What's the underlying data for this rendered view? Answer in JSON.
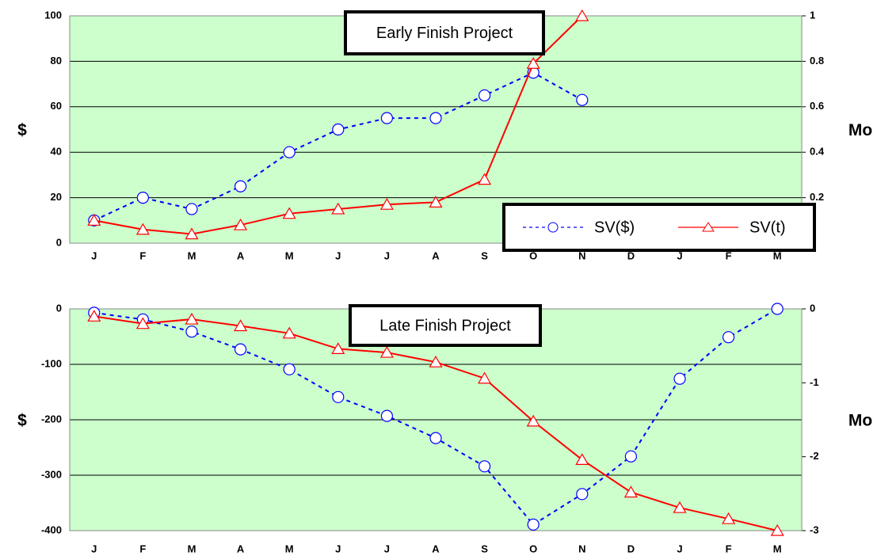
{
  "chart_data": [
    {
      "type": "line",
      "title": "Early Finish Project",
      "categories": [
        "J",
        "F",
        "M",
        "A",
        "M",
        "J",
        "J",
        "A",
        "S",
        "O",
        "N",
        "D",
        "J",
        "F",
        "M"
      ],
      "ylabel": "$",
      "y2label": "Mo",
      "ylim": [
        0,
        100
      ],
      "yticks": [
        0,
        20,
        40,
        60,
        80,
        100
      ],
      "y2lim": [
        0,
        1
      ],
      "y2ticks": [
        0,
        0.2,
        0.4,
        0.6,
        0.8,
        1
      ],
      "grid": true,
      "background": "#ccffcc",
      "legend": "lower right",
      "series": [
        {
          "name": "SV($)",
          "color": "#0000ff",
          "marker": "circle",
          "dash": true,
          "values": [
            10,
            20,
            15,
            25,
            40,
            50,
            55,
            55,
            65,
            75,
            63,
            null,
            null,
            null,
            null
          ]
        },
        {
          "name": "SV(t)",
          "color": "#ff0000",
          "marker": "triangle",
          "axis": "y2",
          "values": [
            0.1,
            0.06,
            0.04,
            0.08,
            0.13,
            0.15,
            0.17,
            0.18,
            0.28,
            0.79,
            1,
            null,
            null,
            null,
            null
          ]
        }
      ]
    },
    {
      "type": "line",
      "title": "Late Finish Project",
      "categories": [
        "J",
        "F",
        "M",
        "A",
        "M",
        "J",
        "J",
        "A",
        "S",
        "O",
        "N",
        "D",
        "J",
        "F",
        "M"
      ],
      "ylabel": "$",
      "y2label": "Mo",
      "ylim": [
        -400,
        0
      ],
      "yticks": [
        -400,
        -300,
        -200,
        -100,
        0
      ],
      "y2lim": [
        -3,
        0
      ],
      "y2ticks": [
        -3,
        -2,
        -1,
        0
      ],
      "grid": true,
      "background": "#ccffcc",
      "series": [
        {
          "color": "#0000ff",
          "marker": "circle",
          "dash": true,
          "values": [
            -7,
            -19,
            -41,
            -73,
            -109,
            -159,
            -193,
            -233,
            -284,
            -389,
            -334,
            -266,
            -126,
            -51,
            0
          ]
        },
        {
          "color": "#ff0000",
          "marker": "triangle",
          "axis": "y2",
          "values": [
            -0.1,
            -0.2,
            -0.14,
            -0.23,
            -0.33,
            -0.54,
            -0.59,
            -0.72,
            -0.94,
            -1.52,
            -2.04,
            -2.48,
            -2.69,
            -2.84,
            -3
          ]
        }
      ]
    }
  ]
}
